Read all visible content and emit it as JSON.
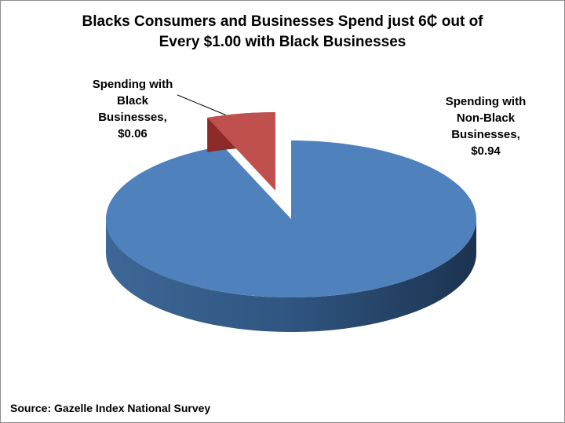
{
  "chart_data": {
    "type": "pie",
    "title_line1": "Blacks Consumers and Businesses Spend just 6₵ out of",
    "title_line2": "Every $1.00 with Black Businesses",
    "slices": [
      {
        "label_lines": [
          "Spending with",
          "Non-Black",
          "Businesses,",
          "$0.94"
        ],
        "value": 0.94,
        "color": "#4f81bd",
        "exploded": false
      },
      {
        "label_lines": [
          "Spending with",
          "Black",
          "Businesses,",
          "$0.06"
        ],
        "value": 0.06,
        "color": "#c0504d",
        "exploded": true
      }
    ],
    "source": "Source: Gazelle  Index National Survey"
  }
}
